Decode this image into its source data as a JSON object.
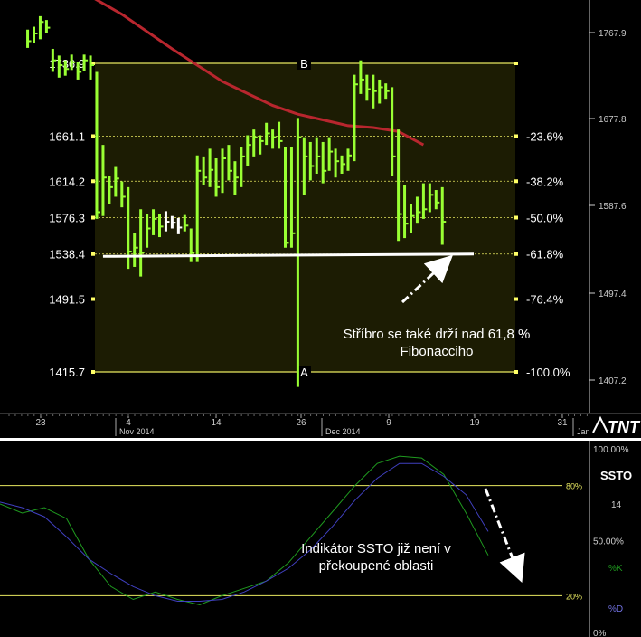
{
  "chart_data": [
    {
      "type": "ohlc",
      "right_axis_ticks": [
        "1767.9",
        "1677.8",
        "1587.6",
        "1497.4",
        "1407.2"
      ],
      "x_axis": {
        "ticks": [
          {
            "day": "23",
            "date": "2014-10-23"
          },
          {
            "day": "4",
            "date": "2014-11-04"
          },
          {
            "day": "14",
            "date": "2014-11-14"
          },
          {
            "day": "26",
            "date": "2014-11-26"
          },
          {
            "day": "9",
            "date": "2014-12-09"
          },
          {
            "day": "19",
            "date": "2014-12-19"
          },
          {
            "day": "31",
            "date": "2014-12-31"
          }
        ],
        "months": [
          {
            "label": "Nov 2014"
          },
          {
            "label": "Dec 2014"
          },
          {
            "label": "Jan"
          }
        ]
      },
      "fibonacci": {
        "high_label": "B",
        "low_label": "A",
        "levels": [
          {
            "value": 1736.9,
            "value_label": "1736.9",
            "pct_label": ""
          },
          {
            "value": 1661.1,
            "value_label": "1661.1",
            "pct_label": "-23.6%"
          },
          {
            "value": 1614.2,
            "value_label": "1614.2",
            "pct_label": "-38.2%"
          },
          {
            "value": 1576.3,
            "value_label": "1576.3",
            "pct_label": "-50.0%"
          },
          {
            "value": 1538.4,
            "value_label": "1538.4",
            "pct_label": "-61.8%"
          },
          {
            "value": 1491.5,
            "value_label": "1491.5",
            "pct_label": "-76.4%"
          },
          {
            "value": 1415.7,
            "value_label": "1415.7",
            "pct_label": "-100.0%"
          }
        ]
      },
      "bars": [
        {
          "high": 1772,
          "low": 1753,
          "close": 1760
        },
        {
          "high": 1775,
          "low": 1758,
          "close": 1768
        },
        {
          "high": 1786,
          "low": 1762,
          "close": 1780
        },
        {
          "high": 1782,
          "low": 1768,
          "close": 1774
        },
        {
          "high": 1752,
          "low": 1728,
          "close": 1740
        },
        {
          "high": 1745,
          "low": 1722,
          "close": 1735
        },
        {
          "high": 1740,
          "low": 1724,
          "close": 1731
        },
        {
          "high": 1746,
          "low": 1730,
          "close": 1738
        },
        {
          "high": 1738,
          "low": 1720,
          "close": 1728
        },
        {
          "high": 1746,
          "low": 1729,
          "close": 1740
        },
        {
          "high": 1745,
          "low": 1720,
          "close": 1735
        },
        {
          "high": 1728,
          "low": 1575,
          "close": 1582
        },
        {
          "high": 1652,
          "low": 1578,
          "close": 1618
        },
        {
          "high": 1620,
          "low": 1590,
          "close": 1608
        },
        {
          "high": 1629,
          "low": 1598,
          "close": 1617
        },
        {
          "high": 1614,
          "low": 1587,
          "close": 1598
        },
        {
          "high": 1608,
          "low": 1523,
          "close": 1541
        },
        {
          "high": 1560,
          "low": 1525,
          "close": 1545
        },
        {
          "high": 1585,
          "low": 1515,
          "close": 1540
        },
        {
          "high": 1580,
          "low": 1545,
          "close": 1565
        },
        {
          "high": 1585,
          "low": 1558,
          "close": 1575
        },
        {
          "high": 1580,
          "low": 1556,
          "close": 1567
        },
        {
          "high": 1583,
          "low": 1562,
          "close": 1572
        },
        {
          "high": 1578,
          "low": 1565,
          "close": 1571
        },
        {
          "high": 1576,
          "low": 1559,
          "close": 1566
        },
        {
          "high": 1579,
          "low": 1562,
          "close": 1568
        },
        {
          "high": 1565,
          "low": 1530,
          "close": 1540
        },
        {
          "high": 1641,
          "low": 1530,
          "close": 1625
        },
        {
          "high": 1640,
          "low": 1610,
          "close": 1618
        },
        {
          "high": 1648,
          "low": 1608,
          "close": 1626
        },
        {
          "high": 1638,
          "low": 1598,
          "close": 1608
        },
        {
          "high": 1648,
          "low": 1602,
          "close": 1638
        },
        {
          "high": 1652,
          "low": 1615,
          "close": 1625
        },
        {
          "high": 1635,
          "low": 1600,
          "close": 1618
        },
        {
          "high": 1650,
          "low": 1608,
          "close": 1640
        },
        {
          "high": 1662,
          "low": 1630,
          "close": 1652
        },
        {
          "high": 1668,
          "low": 1640,
          "close": 1660
        },
        {
          "high": 1662,
          "low": 1642,
          "close": 1656
        },
        {
          "high": 1675,
          "low": 1652,
          "close": 1664
        },
        {
          "high": 1668,
          "low": 1648,
          "close": 1660
        },
        {
          "high": 1676,
          "low": 1648,
          "close": 1656
        },
        {
          "high": 1650,
          "low": 1545,
          "close": 1550
        },
        {
          "high": 1650,
          "low": 1545,
          "close": 1560
        },
        {
          "high": 1680,
          "low": 1400,
          "close": 1660
        },
        {
          "high": 1660,
          "low": 1600,
          "close": 1640
        },
        {
          "high": 1655,
          "low": 1615,
          "close": 1630
        },
        {
          "high": 1660,
          "low": 1622,
          "close": 1640
        },
        {
          "high": 1655,
          "low": 1612,
          "close": 1625
        },
        {
          "high": 1660,
          "low": 1625,
          "close": 1645
        },
        {
          "high": 1648,
          "low": 1618,
          "close": 1635
        },
        {
          "high": 1641,
          "low": 1622,
          "close": 1632
        },
        {
          "high": 1648,
          "low": 1625,
          "close": 1641
        },
        {
          "high": 1725,
          "low": 1635,
          "close": 1715
        },
        {
          "high": 1740,
          "low": 1705,
          "close": 1720
        },
        {
          "high": 1725,
          "low": 1698,
          "close": 1710
        },
        {
          "high": 1725,
          "low": 1690,
          "close": 1708
        },
        {
          "high": 1720,
          "low": 1695,
          "close": 1712
        },
        {
          "high": 1716,
          "low": 1700,
          "close": 1708
        },
        {
          "high": 1712,
          "low": 1620,
          "close": 1640
        },
        {
          "high": 1668,
          "low": 1552,
          "close": 1580
        },
        {
          "high": 1610,
          "low": 1555,
          "close": 1570
        },
        {
          "high": 1590,
          "low": 1560,
          "close": 1578
        },
        {
          "high": 1598,
          "low": 1570,
          "close": 1582
        },
        {
          "high": 1612,
          "low": 1575,
          "close": 1585
        },
        {
          "high": 1612,
          "low": 1582,
          "close": 1600
        },
        {
          "high": 1605,
          "low": 1585,
          "close": 1592
        },
        {
          "high": 1608,
          "low": 1548,
          "close": 1572
        }
      ],
      "moving_average": {
        "color": "#b8262e",
        "points": [
          [
            7,
            1818
          ],
          [
            15,
            1788
          ],
          [
            23,
            1752
          ],
          [
            31,
            1718
          ],
          [
            39,
            1693
          ],
          [
            43,
            1684
          ],
          [
            47,
            1678
          ],
          [
            51,
            1672
          ],
          [
            55,
            1670
          ],
          [
            59,
            1666
          ],
          [
            63,
            1652
          ]
        ]
      },
      "support_line": {
        "from_bar": 12,
        "to_bar": 71,
        "start_value": 1536,
        "end_value": 1538.4
      },
      "annotation": {
        "lines": [
          "Stříbro se také drží nad 61,8 %",
          "Fibonacciho"
        ],
        "arrow": "up-right"
      },
      "logo": "TNT"
    },
    {
      "type": "line",
      "title": "SSTO",
      "period": "14",
      "ylim": [
        0,
        100
      ],
      "right_axis_ticks": [
        "100.00%",
        "50.00%",
        "0%"
      ],
      "threshold_lines": [
        {
          "value": 80,
          "label": "80%"
        },
        {
          "value": 20,
          "label": "20%"
        }
      ],
      "series": [
        {
          "name": "%K",
          "color": "#1f9a1f",
          "values": [
            70,
            65,
            68,
            62,
            40,
            25,
            18,
            22,
            18,
            15,
            20,
            24,
            28,
            38,
            52,
            66,
            80,
            92,
            96,
            95,
            86,
            65,
            42
          ]
        },
        {
          "name": "%D",
          "color": "#4040c0",
          "values": [
            71,
            68,
            63,
            52,
            40,
            32,
            25,
            20,
            17,
            17,
            18,
            22,
            28,
            35,
            45,
            58,
            72,
            84,
            92,
            92,
            85,
            75,
            55
          ]
        }
      ],
      "annotation": {
        "lines": [
          "Indikátor SSTO již není v",
          "překoupené oblasti"
        ],
        "arrow": "down-right"
      }
    }
  ]
}
